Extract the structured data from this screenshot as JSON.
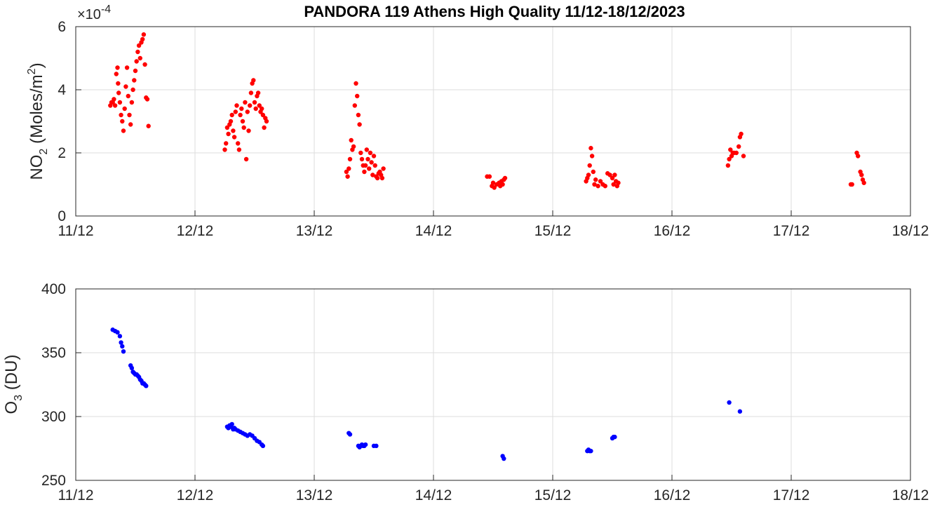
{
  "chart_data": [
    {
      "type": "scatter",
      "title": "PANDORA 119 Athens High Quality 11/12-18/12/2023",
      "ylabel_main": "NO",
      "ylabel_sub": "2",
      "ylabel_unit_pre": " (Moles/m",
      "ylabel_unit_sup": "2",
      "ylabel_unit_post": ")",
      "y_exponent_base": "×10",
      "y_exponent_power": "-4",
      "xlim": [
        11,
        18
      ],
      "ylim": [
        0,
        6
      ],
      "x_ticks": [
        "11/12",
        "12/12",
        "13/12",
        "14/12",
        "15/12",
        "16/12",
        "17/12",
        "18/12"
      ],
      "y_ticks": [
        "0",
        "2",
        "4",
        "6"
      ],
      "grid": true,
      "color": "#ff0000",
      "series": [
        {
          "x": [
            11.29,
            11.3,
            11.31,
            11.32,
            11.33,
            11.34,
            11.35,
            11.355,
            11.36,
            11.37,
            11.38,
            11.39,
            11.4,
            11.41,
            11.42,
            11.43,
            11.44,
            11.45,
            11.46,
            11.47,
            11.48,
            11.49,
            11.5,
            11.51,
            11.52,
            11.53,
            11.54,
            11.55,
            11.56,
            11.57,
            11.58,
            11.59,
            11.6,
            11.61
          ],
          "y": [
            3.5,
            3.6,
            3.6,
            3.7,
            3.5,
            4.5,
            4.7,
            4.2,
            3.9,
            3.6,
            3.2,
            3.0,
            2.7,
            3.4,
            4.1,
            4.7,
            3.8,
            3.2,
            2.9,
            3.6,
            4.0,
            4.3,
            4.6,
            4.9,
            5.2,
            5.4,
            5.0,
            5.5,
            5.6,
            5.75,
            4.8,
            3.75,
            3.7,
            2.85
          ]
        },
        {
          "x": [
            12.25,
            12.26,
            12.27,
            12.28,
            12.29,
            12.3,
            12.31,
            12.32,
            12.33,
            12.34,
            12.35,
            12.36,
            12.37,
            12.38,
            12.39,
            12.4,
            12.41,
            12.42,
            12.43,
            12.44,
            12.45,
            12.46,
            12.47,
            12.48,
            12.49,
            12.5,
            12.51,
            12.52,
            12.53,
            12.54,
            12.55,
            12.56,
            12.57,
            12.58,
            12.59,
            12.6
          ],
          "y": [
            2.1,
            2.3,
            2.8,
            2.6,
            2.9,
            3.0,
            3.2,
            2.7,
            2.5,
            3.3,
            3.5,
            2.3,
            2.1,
            3.2,
            3.4,
            3.0,
            2.8,
            3.6,
            1.8,
            3.3,
            2.7,
            3.5,
            3.9,
            4.2,
            4.3,
            3.6,
            3.4,
            3.8,
            3.9,
            3.5,
            3.3,
            3.4,
            3.2,
            2.8,
            3.1,
            3.0
          ]
        },
        {
          "x": [
            13.27,
            13.28,
            13.29,
            13.3,
            13.31,
            13.32,
            13.33,
            13.34,
            13.35,
            13.36,
            13.37,
            13.38,
            13.39,
            13.4,
            13.41,
            13.42,
            13.43,
            13.44,
            13.45,
            13.46,
            13.47,
            13.48,
            13.49,
            13.5,
            13.51,
            13.52,
            13.53,
            13.54,
            13.55,
            13.56,
            13.57,
            13.58
          ],
          "y": [
            1.4,
            1.25,
            1.5,
            1.8,
            2.4,
            2.1,
            2.2,
            3.5,
            4.2,
            3.8,
            3.2,
            2.9,
            2.0,
            1.8,
            1.6,
            1.4,
            1.6,
            2.1,
            1.8,
            1.5,
            2.0,
            1.7,
            1.3,
            1.9,
            1.6,
            1.25,
            1.2,
            1.35,
            1.4,
            1.3,
            1.2,
            1.5
          ]
        },
        {
          "x": [
            14.45,
            14.47,
            14.49,
            14.5,
            14.51,
            14.53,
            14.55,
            14.56,
            14.57,
            14.58,
            14.59,
            14.6
          ],
          "y": [
            1.25,
            1.25,
            0.95,
            1.05,
            0.9,
            1.0,
            1.05,
            0.95,
            1.1,
            1.0,
            1.15,
            1.2
          ]
        },
        {
          "x": [
            15.28,
            15.29,
            15.3,
            15.31,
            15.32,
            15.33,
            15.34,
            15.35,
            15.36,
            15.38,
            15.4,
            15.42,
            15.44,
            15.46,
            15.48,
            15.5,
            15.51,
            15.52,
            15.53,
            15.54,
            15.55
          ],
          "y": [
            1.1,
            1.2,
            1.3,
            1.6,
            2.15,
            1.9,
            1.4,
            1.0,
            1.15,
            0.95,
            1.1,
            1.0,
            0.95,
            1.35,
            1.3,
            1.2,
            1.0,
            1.3,
            1.1,
            0.95,
            1.05
          ]
        },
        {
          "x": [
            16.47,
            16.48,
            16.49,
            16.5,
            16.51,
            16.52,
            16.54,
            16.56,
            16.57,
            16.58,
            16.6
          ],
          "y": [
            1.6,
            1.8,
            2.1,
            1.9,
            2.0,
            2.0,
            2.0,
            2.2,
            2.5,
            2.6,
            1.9
          ]
        },
        {
          "x": [
            17.5,
            17.51,
            17.55,
            17.56,
            17.58,
            17.59,
            17.6,
            17.61
          ],
          "y": [
            1.0,
            1.0,
            2.0,
            1.9,
            1.4,
            1.3,
            1.15,
            1.05
          ]
        }
      ]
    },
    {
      "type": "scatter",
      "ylabel_main": "O",
      "ylabel_sub": "3",
      "ylabel_unit_post": " (DU)",
      "xlim": [
        11,
        18
      ],
      "ylim": [
        250,
        400
      ],
      "x_ticks": [
        "11/12",
        "12/12",
        "13/12",
        "14/12",
        "15/12",
        "16/12",
        "17/12",
        "18/12"
      ],
      "y_ticks": [
        "250",
        "300",
        "350",
        "400"
      ],
      "grid": true,
      "color": "#0000ff",
      "series": [
        {
          "x": [
            11.31,
            11.33,
            11.35,
            11.37,
            11.38,
            11.39,
            11.4,
            11.46,
            11.47,
            11.48,
            11.49,
            11.5,
            11.51,
            11.52,
            11.53,
            11.54,
            11.55,
            11.56,
            11.57,
            11.58,
            11.59,
            12.27,
            12.28,
            12.29,
            12.3,
            12.31,
            12.32,
            12.33,
            12.34,
            12.36,
            12.38,
            12.4,
            12.42,
            12.44,
            12.46,
            12.48,
            12.5,
            12.52,
            12.54,
            12.56,
            12.57,
            13.29,
            13.3,
            13.37,
            13.38,
            13.39,
            13.4,
            13.41,
            13.42,
            13.43,
            13.5,
            13.52,
            14.58,
            14.59,
            15.29,
            15.3,
            15.31,
            15.32,
            15.5,
            15.51,
            15.52,
            16.48,
            16.57
          ],
          "y": [
            368,
            367,
            366,
            363,
            358,
            355,
            351,
            340,
            338,
            335,
            334,
            333,
            333,
            332,
            331,
            329,
            328,
            326,
            326,
            325,
            324,
            292,
            291,
            293,
            292,
            294,
            290,
            291,
            290,
            289,
            288,
            287,
            286,
            285,
            286,
            285,
            283,
            281,
            280,
            278,
            277,
            287,
            286,
            277,
            276,
            277,
            278,
            277,
            277,
            278,
            277,
            277,
            269,
            267,
            273,
            274,
            273,
            273,
            283,
            284,
            284,
            311,
            304
          ]
        }
      ]
    }
  ]
}
